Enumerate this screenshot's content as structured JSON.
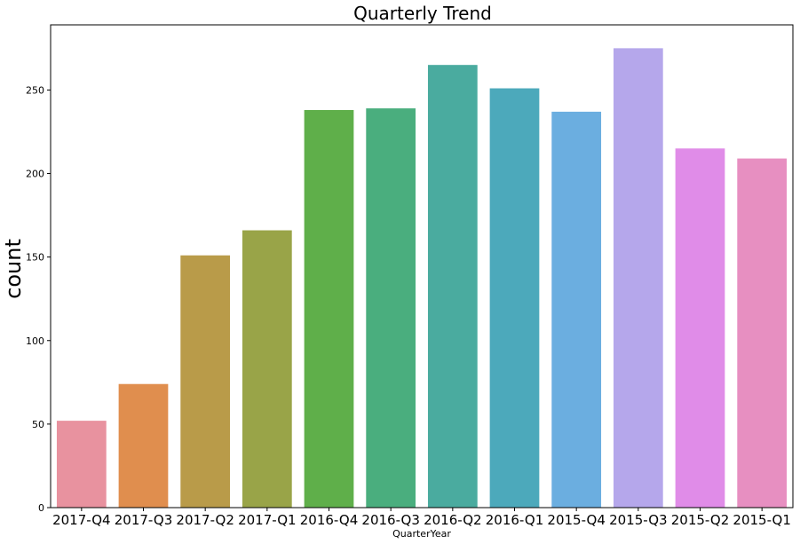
{
  "chart_data": {
    "type": "bar",
    "title": "Quarterly Trend",
    "xlabel": "QuarterYear",
    "ylabel": "count",
    "categories": [
      "2017-Q4",
      "2017-Q3",
      "2017-Q2",
      "2017-Q1",
      "2016-Q4",
      "2016-Q3",
      "2016-Q2",
      "2016-Q1",
      "2015-Q4",
      "2015-Q3",
      "2015-Q2",
      "2015-Q1"
    ],
    "values": [
      52,
      74,
      151,
      166,
      238,
      239,
      265,
      251,
      237,
      275,
      215,
      209
    ],
    "colors": [
      "#e8929f",
      "#e08e4e",
      "#b99b49",
      "#99a448",
      "#5faf4a",
      "#4aae7e",
      "#4aab9f",
      "#4ca9bb",
      "#6baee0",
      "#b5a7eb",
      "#e08ce8",
      "#e78fc1"
    ],
    "ylim": [
      0,
      289
    ],
    "yticks": [
      0,
      50,
      100,
      150,
      200,
      250
    ],
    "grid": false,
    "legend": "none"
  }
}
